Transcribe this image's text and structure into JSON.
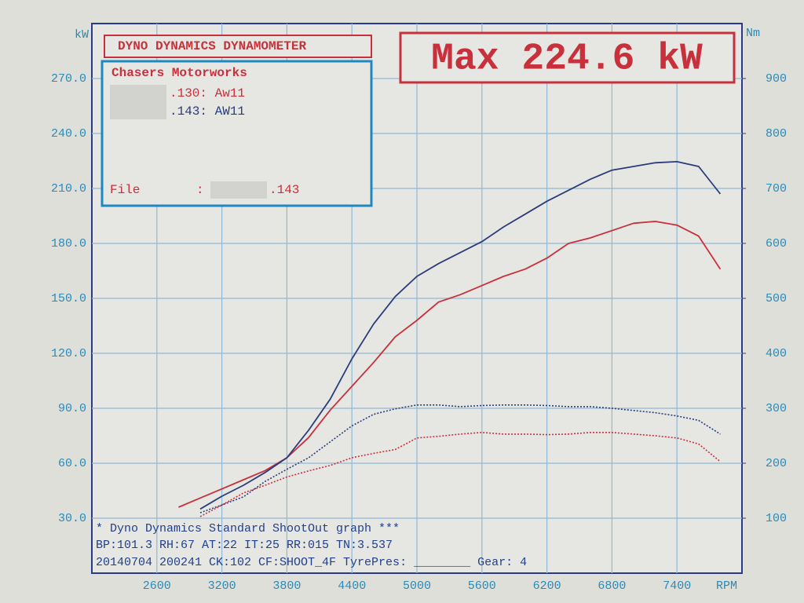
{
  "chart_data": {
    "type": "line",
    "header": "DYNO DYNAMICS DYNAMOMETER",
    "max_label": "Max 224.6 kW",
    "y_unit": "kW",
    "y2_unit": "Nm",
    "x_unit": "RPM",
    "shop": "Chasers Motorworks",
    "file_label": "File",
    "file_sep": ":",
    "file_name": ".143",
    "info_lines": [
      "* Dyno Dynamics Standard ShootOut graph ***",
      "BP:101.3 RH:67 AT:22 IT:25  RR:015 TN:3.537",
      "20140704 200241 CK:102 CF:SHOOT_4F TyrePres: ________ Gear: 4"
    ],
    "grid": true,
    "xlim": [
      2000,
      8000
    ],
    "ylim": [
      0,
      300
    ],
    "y2lim": [
      0,
      1000
    ],
    "xticks": [
      2600,
      3200,
      3800,
      4400,
      5000,
      5600,
      6200,
      6800,
      7400
    ],
    "yticks": [
      {
        "value": 30,
        "label": "30.0"
      },
      {
        "value": 60,
        "label": "60.0"
      },
      {
        "value": 90,
        "label": "90.0"
      },
      {
        "value": 120,
        "label": "120.0"
      },
      {
        "value": 150,
        "label": "150.0"
      },
      {
        "value": 180,
        "label": "180.0"
      },
      {
        "value": 210,
        "label": "210.0"
      },
      {
        "value": 240,
        "label": "240.0"
      },
      {
        "value": 270,
        "label": "270.0"
      }
    ],
    "y2ticks": [
      100,
      200,
      300,
      400,
      500,
      600,
      700,
      800,
      900
    ],
    "x": [
      2800,
      3000,
      3200,
      3400,
      3600,
      3800,
      4000,
      4200,
      4400,
      4600,
      4800,
      5000,
      5200,
      5400,
      5600,
      5800,
      6000,
      6200,
      6400,
      6600,
      6800,
      7000,
      7200,
      7400,
      7600,
      7800
    ],
    "series": [
      {
        "name": ".130: Aw11",
        "color": "#c8303c",
        "values": [
          36,
          41,
          46,
          51,
          56,
          63,
          74,
          89,
          102,
          115,
          129,
          138,
          148,
          152,
          157,
          162,
          166,
          172,
          180,
          183,
          187,
          191,
          192,
          190,
          184,
          166
        ]
      },
      {
        "name": ".143: AW11",
        "color": "#2b3c7a",
        "values": [
          null,
          35,
          42,
          48,
          55,
          63,
          78,
          95,
          117,
          136,
          151,
          162,
          169,
          175,
          181,
          189,
          196,
          203,
          209,
          215,
          220,
          222,
          224,
          224.6,
          222,
          207
        ]
      },
      {
        "color": "#c8303c",
        "dashed": true,
        "axis": "y2",
        "values": [
          null,
          103,
          124,
          146,
          160,
          175,
          186,
          196,
          210,
          218,
          225,
          246,
          249,
          253,
          256,
          253,
          253,
          252,
          253,
          256,
          256,
          253,
          250,
          246,
          235,
          203
        ]
      },
      {
        "color": "#2b3c7a",
        "dashed": true,
        "axis": "y2",
        "values": [
          null,
          110,
          124,
          139,
          167,
          189,
          210,
          239,
          268,
          289,
          299,
          306,
          306,
          303,
          305,
          306,
          306,
          305,
          303,
          303,
          300,
          296,
          292,
          286,
          278,
          253
        ]
      }
    ]
  }
}
